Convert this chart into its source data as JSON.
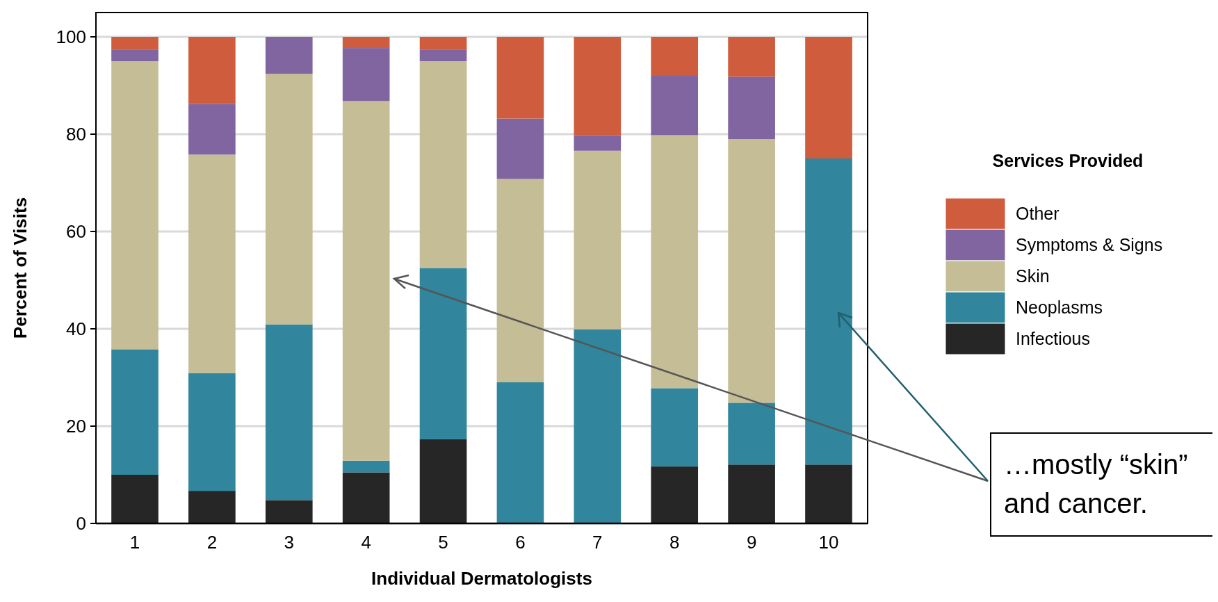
{
  "chart_data": {
    "type": "bar",
    "stacked": true,
    "xlabel": "Individual Dermatologists",
    "ylabel": "Percent of Visits",
    "legend_title": "Services Provided",
    "legend": "right",
    "grid": "y",
    "categories": [
      "1",
      "2",
      "3",
      "4",
      "5",
      "6",
      "7",
      "8",
      "9",
      "10"
    ],
    "series": [
      {
        "name": "Infectious",
        "color": "#262626",
        "values": [
          10.0,
          6.7,
          4.8,
          10.5,
          17.3,
          0,
          0,
          11.7,
          12.1,
          12.1
        ]
      },
      {
        "name": "Neoplasms",
        "color": "#31859c",
        "values": [
          25.8,
          24.2,
          36.1,
          2.4,
          35.2,
          29.0,
          39.9,
          16.1,
          12.7,
          62.9
        ]
      },
      {
        "name": "Skin",
        "color": "#c5bd96",
        "values": [
          59.2,
          44.9,
          51.5,
          73.9,
          42.5,
          41.8,
          36.7,
          52.0,
          54.2,
          0
        ]
      },
      {
        "name": "Symptoms & Signs",
        "color": "#8065a0",
        "values": [
          2.4,
          10.4,
          7.6,
          10.9,
          2.4,
          12.4,
          3.2,
          12.2,
          12.8,
          0
        ]
      },
      {
        "name": "Other",
        "color": "#cf5c3c",
        "values": [
          2.6,
          13.8,
          0,
          2.3,
          2.6,
          16.8,
          20.2,
          8.0,
          8.2,
          25.0
        ]
      }
    ],
    "ylim": [
      0,
      105
    ],
    "yticks": [
      0,
      20,
      40,
      60,
      80,
      100
    ],
    "annotations": [
      "…mostly “skin” and cancer."
    ]
  }
}
